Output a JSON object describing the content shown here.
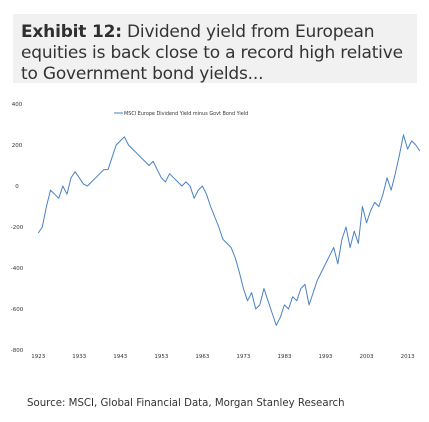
{
  "exhibit": {
    "label": "Exhibit 12:",
    "title": "Dividend yield from European equities is back close to a record high relative to Government bond yields..."
  },
  "source": "Source: MSCI, Global Financial Data, Morgan Stanley Research",
  "colors": {
    "series": "#4a82c3",
    "text": "#333333",
    "header_background": "#f1f1f1"
  },
  "chart_data": {
    "type": "line",
    "title": "",
    "xlabel": "",
    "ylabel": "",
    "xlim": [
      1921,
      2017
    ],
    "ylim": [
      -800,
      400
    ],
    "x_ticks": [
      "1923",
      "1933",
      "1943",
      "1953",
      "1963",
      "1973",
      "1983",
      "1993",
      "2003",
      "2013"
    ],
    "y_ticks": [
      "400",
      "200",
      "0",
      "-200",
      "-400",
      "-600",
      "-800"
    ],
    "grid": false,
    "legend": {
      "position": "top-center",
      "entries": [
        "MSCI Europe Dividend Yield minus Govt Bond Yield"
      ]
    },
    "series": [
      {
        "name": "MSCI Europe Dividend Yield minus Govt Bond Yield",
        "x": [
          1923,
          1924,
          1925,
          1926,
          1927,
          1928,
          1929,
          1930,
          1931,
          1932,
          1933,
          1934,
          1935,
          1936,
          1937,
          1938,
          1939,
          1940,
          1941,
          1942,
          1943,
          1944,
          1945,
          1946,
          1947,
          1948,
          1949,
          1950,
          1951,
          1952,
          1953,
          1954,
          1955,
          1956,
          1957,
          1958,
          1959,
          1960,
          1961,
          1962,
          1963,
          1964,
          1965,
          1966,
          1967,
          1968,
          1969,
          1970,
          1971,
          1972,
          1973,
          1974,
          1975,
          1976,
          1977,
          1978,
          1979,
          1980,
          1981,
          1982,
          1983,
          1984,
          1985,
          1986,
          1987,
          1988,
          1989,
          1990,
          1991,
          1992,
          1993,
          1994,
          1995,
          1996,
          1997,
          1998,
          1999,
          2000,
          2001,
          2002,
          2003,
          2004,
          2005,
          2006,
          2007,
          2008,
          2009,
          2010,
          2011,
          2012,
          2013,
          2014,
          2015,
          2016
        ],
        "y": [
          -230,
          -200,
          -100,
          -20,
          -40,
          -60,
          0,
          -40,
          40,
          70,
          40,
          10,
          0,
          20,
          40,
          60,
          80,
          80,
          140,
          200,
          220,
          240,
          200,
          180,
          160,
          140,
          120,
          100,
          120,
          80,
          40,
          20,
          60,
          40,
          20,
          0,
          20,
          0,
          -60,
          -20,
          0,
          -40,
          -100,
          -150,
          -200,
          -260,
          -280,
          -300,
          -350,
          -420,
          -500,
          -560,
          -520,
          -600,
          -580,
          -500,
          -560,
          -620,
          -680,
          -640,
          -580,
          -600,
          -540,
          -560,
          -500,
          -480,
          -580,
          -520,
          -460,
          -420,
          -380,
          -340,
          -300,
          -380,
          -260,
          -200,
          -300,
          -220,
          -280,
          -100,
          -180,
          -120,
          -80,
          -100,
          -40,
          40,
          -20,
          60,
          150,
          250,
          180,
          220,
          200,
          170
        ]
      }
    ]
  }
}
